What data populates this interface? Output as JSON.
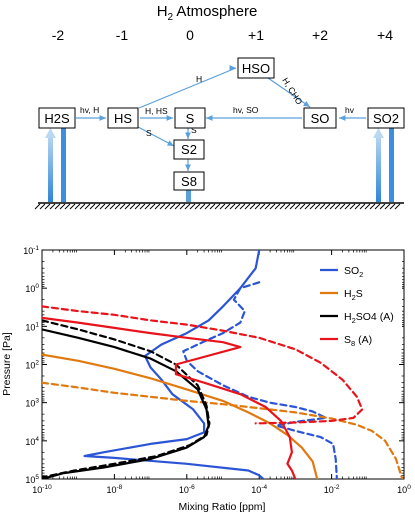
{
  "scheme": {
    "title_main": "H",
    "title_sub": "2",
    "title_rest": " Atmosphere",
    "oxidation_states": [
      "-2",
      "-1",
      "0",
      "+1",
      "+2",
      "+4"
    ],
    "nodes": {
      "h2s": "H2S",
      "hs": "HS",
      "s": "S",
      "hso": "HSO",
      "so": "SO",
      "so2": "SO2",
      "s2": "S2",
      "s8": "S8"
    },
    "reaction_labels": {
      "h2s_hs": "hv, H",
      "hs_hso": "H",
      "hs_s": "H, HS",
      "hs_s2": "S",
      "s_s2": "S",
      "so_s": "hv, SO",
      "hso_so": "H, CHO",
      "so2_so": "hv"
    }
  },
  "chart_data": {
    "type": "line",
    "xlabel": "Mixing Ratio [ppm]",
    "ylabel": "Pressure [Pa]",
    "xscale": "log",
    "yscale": "log",
    "xlim": [
      1e-10,
      1
    ],
    "ylim": [
      100000,
      0.1
    ],
    "x_ticks": [
      "10^-10",
      "10^-8",
      "10^-6",
      "10^-4",
      "10^-2",
      "10^0"
    ],
    "y_ticks": [
      "10^-1",
      "10^0",
      "10^1",
      "10^2",
      "10^3",
      "10^4",
      "10^5"
    ],
    "legend_position": "top-right",
    "legend": [
      {
        "base": "SO",
        "sub": "2",
        "tail": "",
        "color": "#2b55d6"
      },
      {
        "base": "H",
        "sub": "2",
        "tail": "S",
        "color": "#e07a10"
      },
      {
        "base": "H",
        "sub": "2",
        "tail": "SO4 (A)",
        "color": "#000000"
      },
      {
        "base": "S",
        "sub": "8",
        "tail": " (A)",
        "color": "#e8141c"
      }
    ],
    "series": [
      {
        "name": "SO2",
        "style": "solid",
        "color": "#2b55d6",
        "points": [
          [
            0.0001,
            0.1
          ],
          [
            8e-05,
            0.3
          ],
          [
            3e-05,
            1
          ],
          [
            1e-05,
            3
          ],
          [
            4e-06,
            7
          ],
          [
            1e-06,
            15
          ],
          [
            2e-07,
            30
          ],
          [
            7e-08,
            60
          ],
          [
            1e-07,
            120
          ],
          [
            2e-07,
            250
          ],
          [
            4e-07,
            600
          ],
          [
            1.5e-06,
            1500
          ],
          [
            3e-06,
            3500
          ],
          [
            3e-06,
            6000
          ],
          [
            1e-06,
            9000
          ],
          [
            1e-07,
            12000
          ],
          [
            5e-09,
            20000
          ],
          [
            1.5e-09,
            25000
          ],
          [
            1e-08,
            28000
          ],
          [
            1e-06,
            40000
          ],
          [
            5e-05,
            60000
          ],
          [
            0.0001,
            80000
          ],
          [
            0.00013,
            100000
          ]
        ]
      },
      {
        "name": "SO2",
        "style": "dashed",
        "color": "#2b55d6",
        "points": [
          [
            0.0001,
            0.7
          ],
          [
            3e-05,
            1
          ],
          [
            2e-05,
            2
          ],
          [
            4e-05,
            4
          ],
          [
            3e-05,
            8
          ],
          [
            1e-05,
            15
          ],
          [
            3e-06,
            25
          ],
          [
            8e-07,
            45
          ],
          [
            1e-06,
            80
          ],
          [
            2e-06,
            150
          ],
          [
            1e-05,
            350
          ],
          [
            5e-05,
            700
          ],
          [
            0.0002,
            1000
          ],
          [
            0.001,
            1300
          ],
          [
            0.003,
            1700
          ],
          [
            0.007,
            2500
          ],
          [
            0.001,
            3200
          ],
          [
            0.0003,
            4000
          ],
          [
            0.001,
            5500
          ],
          [
            0.005,
            8000
          ],
          [
            0.011,
            12000
          ],
          [
            0.013,
            30000
          ],
          [
            0.014,
            100000
          ]
        ]
      },
      {
        "name": "H2S",
        "style": "solid",
        "color": "#e07a10",
        "points": [
          [
            1e-10,
            55
          ],
          [
            1e-09,
            80
          ],
          [
            1e-08,
            130
          ],
          [
            1e-07,
            230
          ],
          [
            1e-06,
            450
          ],
          [
            1e-05,
            900
          ],
          [
            5e-05,
            1800
          ],
          [
            0.0002,
            3500
          ],
          [
            0.0006,
            7000
          ],
          [
            0.0015,
            15000
          ],
          [
            0.003,
            35000
          ],
          [
            0.004,
            100000
          ]
        ]
      },
      {
        "name": "H2S",
        "style": "dashed",
        "color": "#e07a10",
        "points": [
          [
            1e-10,
            300
          ],
          [
            1e-09,
            400
          ],
          [
            1e-08,
            550
          ],
          [
            1e-07,
            700
          ],
          [
            1e-06,
            900
          ],
          [
            1e-05,
            1100
          ],
          [
            0.0001,
            1400
          ],
          [
            0.001,
            1800
          ],
          [
            0.01,
            2600
          ],
          [
            0.05,
            3800
          ],
          [
            0.13,
            5500
          ],
          [
            0.3,
            10000
          ],
          [
            0.6,
            30000
          ],
          [
            0.9,
            100000
          ]
        ]
      },
      {
        "name": "H2SO4 (A)",
        "style": "solid",
        "color": "#000000",
        "points": [
          [
            1e-10,
            12
          ],
          [
            1e-09,
            20
          ],
          [
            1e-08,
            35
          ],
          [
            1e-07,
            70
          ],
          [
            5e-07,
            150
          ],
          [
            2e-06,
            450
          ],
          [
            3.5e-06,
            1500
          ],
          [
            4e-06,
            4000
          ],
          [
            3e-06,
            8000
          ],
          [
            1e-06,
            15000
          ],
          [
            1e-07,
            30000
          ],
          [
            5e-09,
            50000
          ],
          [
            4e-10,
            70000
          ],
          [
            1e-10,
            100000
          ]
        ]
      },
      {
        "name": "H2SO4 (A)",
        "style": "dashed",
        "color": "#000000",
        "points": [
          [
            1e-10,
            7
          ],
          [
            1e-09,
            12
          ],
          [
            1e-08,
            22
          ],
          [
            1e-07,
            45
          ],
          [
            5e-07,
            100
          ],
          [
            2e-06,
            350
          ],
          [
            3.5e-06,
            1200
          ],
          [
            4.2e-06,
            3500
          ],
          [
            3.5e-06,
            7000
          ],
          [
            1.2e-06,
            13000
          ],
          [
            1.5e-07,
            25000
          ],
          [
            1e-08,
            40000
          ],
          [
            8e-10,
            60000
          ],
          [
            1e-10,
            90000
          ]
        ]
      },
      {
        "name": "S8 (A)",
        "style": "solid",
        "color": "#e8141c",
        "points": [
          [
            1e-10,
            6
          ],
          [
            1e-09,
            8
          ],
          [
            1e-08,
            11
          ],
          [
            1e-07,
            15
          ],
          [
            1e-06,
            20
          ],
          [
            1e-05,
            26
          ],
          [
            3e-05,
            35
          ],
          [
            5e-07,
            100
          ],
          [
            5e-07,
            180
          ],
          [
            3e-06,
            300
          ],
          [
            3e-05,
            600
          ],
          [
            0.00015,
            1300
          ],
          [
            0.0004,
            3000
          ],
          [
            0.0007,
            8000
          ],
          [
            0.0008,
            20000
          ],
          [
            0.0006,
            40000
          ],
          [
            0.0008,
            60000
          ],
          [
            0.001,
            100000
          ]
        ]
      },
      {
        "name": "S8 (A)",
        "style": "dashed",
        "color": "#e8141c",
        "points": [
          [
            1e-10,
            3
          ],
          [
            1e-09,
            4
          ],
          [
            1e-08,
            5
          ],
          [
            1e-07,
            7
          ],
          [
            1e-06,
            9
          ],
          [
            1e-05,
            13
          ],
          [
            0.0001,
            20
          ],
          [
            0.001,
            40
          ],
          [
            0.005,
            90
          ],
          [
            0.02,
            250
          ],
          [
            0.05,
            700
          ],
          [
            0.07,
            1500
          ],
          [
            0.04,
            2500
          ],
          [
            0.01,
            3000
          ],
          [
            0.001,
            3300
          ],
          [
            8e-05,
            3500
          ]
        ]
      }
    ]
  }
}
